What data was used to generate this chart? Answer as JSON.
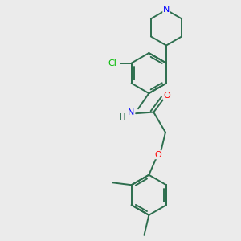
{
  "bg_color": "#ebebeb",
  "bond_color": "#2d6e4e",
  "n_color": "#0000ff",
  "o_color": "#ff0000",
  "cl_color": "#00bb00",
  "bond_lw": 1.4,
  "figsize": [
    3.0,
    3.0
  ],
  "dpi": 100,
  "xlim": [
    0,
    10
  ],
  "ylim": [
    0,
    10
  ]
}
